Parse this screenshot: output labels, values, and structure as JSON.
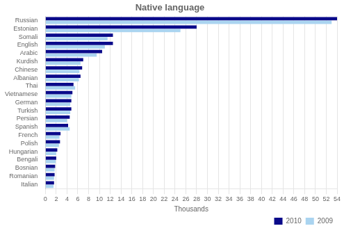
{
  "chart_data": {
    "type": "bar",
    "orientation": "horizontal",
    "title": "Native language",
    "xlabel": "Thousands",
    "categories": [
      "Russian",
      "Estonian",
      "Somali",
      "English",
      "Arabic",
      "Kurdish",
      "Chinese",
      "Albanian",
      "Thai",
      "Vietnamese",
      "German",
      "Turkish",
      "Persian",
      "Spanish",
      "French",
      "Polish",
      "Hungarian",
      "Bengali",
      "Bosnian",
      "Romanian",
      "Italian"
    ],
    "series": [
      {
        "name": "2010",
        "color": "#0a0a8a",
        "values": [
          54.0,
          28.0,
          12.5,
          12.5,
          10.5,
          7.0,
          6.8,
          6.5,
          5.2,
          5.0,
          4.8,
          4.8,
          4.5,
          4.2,
          2.8,
          2.7,
          2.2,
          2.0,
          1.8,
          1.7,
          1.6
        ]
      },
      {
        "name": "2009",
        "color": "#aad4f0",
        "values": [
          53.0,
          25.0,
          11.5,
          11.0,
          9.5,
          6.5,
          6.3,
          6.2,
          5.5,
          4.8,
          4.6,
          4.6,
          4.0,
          4.5,
          2.6,
          2.5,
          2.0,
          1.9,
          1.7,
          1.6,
          1.5
        ]
      }
    ],
    "xlim": [
      0,
      54
    ],
    "xticks": [
      0,
      2,
      4,
      6,
      8,
      10,
      12,
      14,
      16,
      18,
      20,
      22,
      24,
      26,
      28,
      30,
      32,
      34,
      36,
      38,
      40,
      42,
      44,
      46,
      48,
      50,
      52,
      54
    ],
    "grid": true,
    "legend": "lower right"
  }
}
